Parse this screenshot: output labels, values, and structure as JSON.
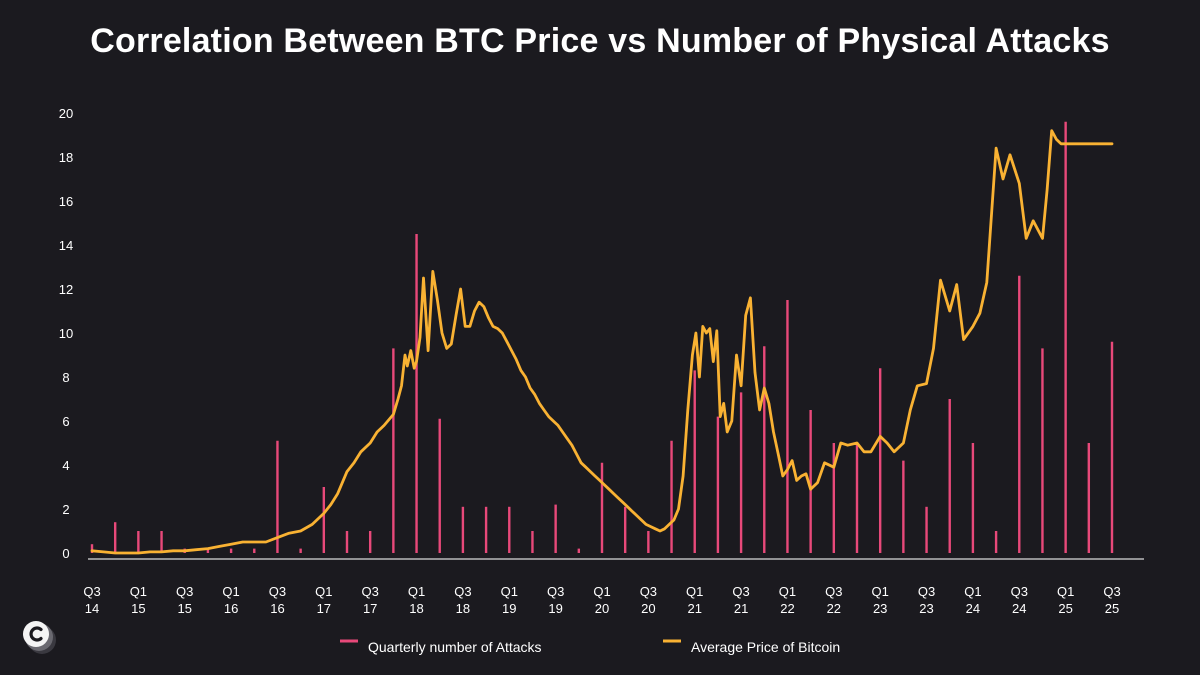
{
  "chart_data": {
    "type": "bar+line",
    "title": "Correlation Between BTC Price vs Number of Physical Attacks",
    "xlabel": "",
    "ylabel": "",
    "ylim": [
      0,
      20
    ],
    "yticks": [
      "0",
      "2",
      "4",
      "6",
      "8",
      "10",
      "12",
      "14",
      "16",
      "18",
      "20"
    ],
    "grid": false,
    "legend_position": "bottom-center",
    "x_tick_labels": [
      [
        "Q3",
        "14"
      ],
      [
        "Q1",
        "15"
      ],
      [
        "Q3",
        "15"
      ],
      [
        "Q1",
        "16"
      ],
      [
        "Q3",
        "16"
      ],
      [
        "Q1",
        "17"
      ],
      [
        "Q3",
        "17"
      ],
      [
        "Q1",
        "18"
      ],
      [
        "Q3",
        "18"
      ],
      [
        "Q1",
        "19"
      ],
      [
        "Q3",
        "19"
      ],
      [
        "Q1",
        "20"
      ],
      [
        "Q3",
        "20"
      ],
      [
        "Q1",
        "21"
      ],
      [
        "Q3",
        "21"
      ],
      [
        "Q1",
        "22"
      ],
      [
        "Q3",
        "22"
      ],
      [
        "Q1",
        "23"
      ],
      [
        "Q3",
        "23"
      ],
      [
        "Q1",
        "24"
      ],
      [
        "Q3",
        "24"
      ],
      [
        "Q1",
        "25"
      ],
      [
        "Q3",
        "25"
      ]
    ],
    "quarters": [
      "Q3 14",
      "Q4 14",
      "Q1 15",
      "Q2 15",
      "Q3 15",
      "Q4 15",
      "Q1 16",
      "Q2 16",
      "Q3 16",
      "Q4 16",
      "Q1 17",
      "Q2 17",
      "Q3 17",
      "Q4 17",
      "Q1 18",
      "Q2 18",
      "Q3 18",
      "Q4 18",
      "Q1 19",
      "Q2 19",
      "Q3 19",
      "Q4 19",
      "Q1 20",
      "Q2 20",
      "Q3 20",
      "Q4 20",
      "Q1 21",
      "Q2 21",
      "Q3 21",
      "Q4 21",
      "Q1 22",
      "Q2 22",
      "Q3 22",
      "Q4 22",
      "Q1 23",
      "Q2 23",
      "Q3 23",
      "Q4 23",
      "Q1 24",
      "Q2 24",
      "Q3 24",
      "Q4 24",
      "Q1 25",
      "Q2 25",
      "Q3 25"
    ],
    "series": [
      {
        "name": "Quarterly number of Attacks",
        "type": "bar",
        "color": "#e8497a",
        "values": [
          0.4,
          1.4,
          1.0,
          1.0,
          0.2,
          0.2,
          0.2,
          0.2,
          5.1,
          0.2,
          3.0,
          1.0,
          1.0,
          9.3,
          14.5,
          6.1,
          2.1,
          2.1,
          2.1,
          1.0,
          2.2,
          0.2,
          4.1,
          2.1,
          1.0,
          5.1,
          8.3,
          6.2,
          7.3,
          9.4,
          11.5,
          6.5,
          5.0,
          5.0,
          8.4,
          4.2,
          2.1,
          7.0,
          5.0,
          1.0,
          12.6,
          9.3,
          19.6,
          5.0,
          9.6
        ]
      },
      {
        "name": "Average Price of Bitcoin",
        "type": "line",
        "color": "#f9b233",
        "x": [
          0.0,
          0.5,
          1.0,
          1.5,
          2.0,
          2.5,
          3.0,
          3.5,
          4.0,
          4.5,
          5.0,
          5.5,
          6.0,
          6.5,
          7.0,
          7.5,
          8.0,
          8.5,
          9.0,
          9.5,
          10.0,
          10.3,
          10.6,
          11.0,
          11.3,
          11.6,
          12.0,
          12.3,
          12.6,
          13.0,
          13.2,
          13.35,
          13.5,
          13.6,
          13.75,
          13.9,
          14.0,
          14.15,
          14.3,
          14.5,
          14.7,
          14.9,
          15.1,
          15.3,
          15.5,
          15.7,
          15.9,
          16.1,
          16.3,
          16.5,
          16.7,
          16.9,
          17.1,
          17.3,
          17.5,
          17.7,
          17.9,
          18.1,
          18.3,
          18.5,
          18.7,
          18.9,
          19.1,
          19.3,
          19.5,
          19.7,
          19.9,
          20.1,
          20.3,
          20.5,
          20.7,
          20.9,
          21.1,
          21.3,
          21.5,
          21.7,
          21.9,
          22.1,
          22.3,
          22.5,
          22.7,
          22.9,
          23.1,
          23.3,
          23.5,
          23.7,
          23.9,
          24.1,
          24.3,
          24.5,
          24.7,
          24.9,
          25.1,
          25.3,
          25.5,
          25.7,
          25.9,
          26.05,
          26.2,
          26.35,
          26.5,
          26.65,
          26.8,
          26.95,
          27.1,
          27.25,
          27.4,
          27.6,
          27.8,
          28.0,
          28.2,
          28.4,
          28.6,
          28.8,
          29.0,
          29.2,
          29.4,
          29.6,
          29.8,
          30.0,
          30.2,
          30.4,
          30.6,
          30.8,
          31.0,
          31.3,
          31.6,
          32.0,
          32.3,
          32.6,
          33.0,
          33.3,
          33.6,
          34.0,
          34.3,
          34.6,
          35.0,
          35.3,
          35.6,
          36.0,
          36.3,
          36.6,
          37.0,
          37.3,
          37.6,
          38.0,
          38.3,
          38.6,
          39.0,
          39.3,
          39.6,
          40.0,
          40.3,
          40.6,
          41.0,
          41.2,
          41.4,
          41.6,
          41.8,
          42.0,
          42.2,
          42.4,
          42.6,
          42.8,
          43.0,
          43.3,
          43.6,
          44.0
        ],
        "values": [
          0.1,
          0.05,
          0.0,
          0.0,
          0.0,
          0.05,
          0.05,
          0.1,
          0.1,
          0.15,
          0.2,
          0.3,
          0.4,
          0.5,
          0.5,
          0.5,
          0.7,
          0.9,
          1.0,
          1.3,
          1.8,
          2.2,
          2.7,
          3.7,
          4.1,
          4.6,
          5.0,
          5.5,
          5.8,
          6.3,
          7.0,
          7.6,
          9.0,
          8.5,
          9.2,
          8.4,
          8.7,
          9.8,
          12.5,
          9.2,
          12.8,
          11.5,
          10.0,
          9.3,
          9.5,
          10.8,
          12.0,
          10.3,
          10.3,
          11.0,
          11.4,
          11.2,
          10.7,
          10.3,
          10.2,
          10.0,
          9.6,
          9.2,
          8.8,
          8.3,
          8.0,
          7.5,
          7.2,
          6.8,
          6.5,
          6.2,
          6.0,
          5.8,
          5.5,
          5.2,
          4.9,
          4.5,
          4.1,
          3.9,
          3.7,
          3.5,
          3.3,
          3.1,
          2.9,
          2.7,
          2.5,
          2.3,
          2.1,
          1.9,
          1.7,
          1.5,
          1.3,
          1.2,
          1.1,
          1.0,
          1.1,
          1.3,
          1.5,
          2.0,
          3.5,
          6.5,
          9.0,
          10.0,
          8.0,
          10.3,
          10.0,
          10.2,
          8.7,
          10.1,
          6.2,
          6.8,
          5.5,
          6.0,
          9.0,
          7.6,
          10.8,
          11.6,
          8.2,
          6.5,
          7.5,
          6.8,
          5.5,
          4.5,
          3.5,
          3.8,
          4.2,
          3.3,
          3.5,
          3.6,
          2.9,
          3.2,
          4.1,
          3.9,
          5.0,
          4.9,
          5.0,
          4.6,
          4.6,
          5.3,
          5.0,
          4.6,
          5.0,
          6.5,
          7.6,
          7.7,
          9.3,
          12.4,
          11.0,
          12.2,
          9.7,
          10.3,
          10.9,
          12.3,
          18.4,
          17.0,
          18.1,
          16.8,
          14.3,
          15.1,
          14.3,
          16.5,
          19.2,
          18.8,
          18.6,
          18.6,
          18.6,
          18.6,
          18.6,
          18.6,
          18.6,
          18.6,
          18.6,
          18.6
        ]
      }
    ]
  },
  "logo": {
    "icon": "c-circle-logo-icon"
  }
}
